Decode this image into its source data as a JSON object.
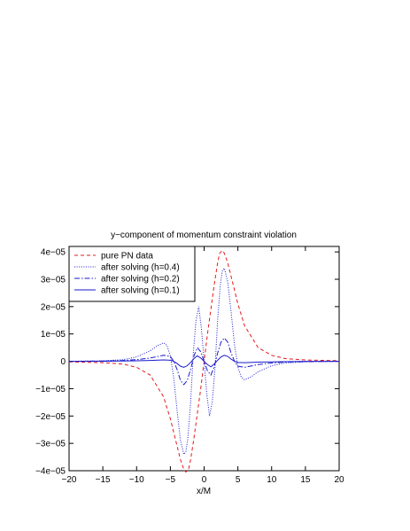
{
  "chart_data": {
    "type": "line",
    "title": "y−component of momentum constraint violation",
    "xlabel": "x/M",
    "ylabel": "",
    "xlim": [
      -20,
      20
    ],
    "ylim": [
      -4e-05,
      4.2e-05
    ],
    "x_ticks": [
      -20,
      -15,
      -10,
      -5,
      0,
      5,
      10,
      15,
      20
    ],
    "x_tick_labels": [
      "−20",
      "−15",
      "−10",
      "−5",
      "0",
      "5",
      "10",
      "15",
      "20"
    ],
    "y_ticks": [
      -4e-05,
      -3e-05,
      -2e-05,
      -1e-05,
      0,
      1e-05,
      2e-05,
      3e-05,
      4e-05
    ],
    "y_tick_labels": [
      "−4e−05",
      "−3e−05",
      "−2e−05",
      "−1e−05",
      "0",
      "1e−05",
      "2e−05",
      "3e−05",
      "4e−05"
    ],
    "grid": false,
    "legend_position": "top-left",
    "series": [
      {
        "name": "pure PN data",
        "color": "#e31a1c",
        "dash": "dashed",
        "x": [
          -20,
          -15,
          -12,
          -10,
          -8,
          -6,
          -5,
          -4,
          -3.5,
          -3,
          -2.7,
          -2.3,
          -2,
          -1.5,
          -1,
          -0.5,
          0,
          0.5,
          1,
          1.5,
          2,
          2.3,
          2.7,
          3,
          3.5,
          4,
          5,
          6,
          8,
          10,
          12,
          15,
          20
        ],
        "y": [
          -2e-07,
          -5e-07,
          -1e-06,
          -2.2e-06,
          -5e-06,
          -1.3e-05,
          -2.1e-05,
          -3.1e-05,
          -3.6e-05,
          -3.95e-05,
          -4.05e-05,
          -3.95e-05,
          -3.6e-05,
          -2.8e-05,
          -1.9e-05,
          -1e-05,
          0,
          1e-05,
          1.9e-05,
          2.8e-05,
          3.6e-05,
          3.95e-05,
          4.05e-05,
          3.95e-05,
          3.6e-05,
          3.1e-05,
          2.1e-05,
          1.3e-05,
          5e-06,
          2.2e-06,
          1e-06,
          5e-07,
          2e-07
        ]
      },
      {
        "name": "after solving (h=0.4)",
        "color": "#1a1acc",
        "dash": "dotted",
        "x": [
          -20,
          -15,
          -12,
          -10,
          -8,
          -7,
          -6,
          -5.5,
          -5,
          -4.5,
          -4,
          -3.5,
          -3,
          -2.7,
          -2.4,
          -2,
          -1.6,
          -1.2,
          -0.8,
          -0.4,
          0,
          0.4,
          0.8,
          1.2,
          1.6,
          2,
          2.4,
          2.7,
          3,
          3.5,
          4,
          4.5,
          5,
          5.5,
          6,
          7,
          8,
          10,
          12,
          15,
          20
        ],
        "y": [
          0,
          2e-07,
          6e-07,
          1.6e-06,
          3.8e-06,
          5.6e-06,
          6.8e-06,
          5.8e-06,
          2e-06,
          -6e-06,
          -1.8e-05,
          -2.9e-05,
          -3.4e-05,
          -3.3e-05,
          -2.8e-05,
          -1.5e-05,
          3e-06,
          1.5e-05,
          2e-05,
          1.2e-05,
          0,
          -1.2e-05,
          -2e-05,
          -1.5e-05,
          -3e-06,
          1.5e-05,
          2.8e-05,
          3.3e-05,
          3.4e-05,
          2.9e-05,
          1.8e-05,
          6e-06,
          -2e-06,
          -5.8e-06,
          -6.8e-06,
          -5.6e-06,
          -3.8e-06,
          -1.6e-06,
          -6e-07,
          -2e-07,
          0
        ]
      },
      {
        "name": "after solving (h=0.2)",
        "color": "#1a1acc",
        "dash": "dashdot",
        "x": [
          -20,
          -15,
          -12,
          -10,
          -8,
          -6,
          -5,
          -4.5,
          -4,
          -3.5,
          -3,
          -2.5,
          -2,
          -1.5,
          -1,
          -0.5,
          0,
          0.5,
          1,
          1.5,
          2,
          2.5,
          3,
          3.5,
          4,
          4.5,
          5,
          6,
          8,
          10,
          12,
          15,
          20
        ],
        "y": [
          0,
          1e-07,
          3e-07,
          6e-07,
          1.2e-06,
          2.2e-06,
          1.8e-06,
          0,
          -3e-06,
          -7e-06,
          -8.5e-06,
          -7e-06,
          -3e-06,
          2e-06,
          5e-06,
          3.5e-06,
          0,
          -3.5e-06,
          -5e-06,
          -2e-06,
          3e-06,
          7e-06,
          8.5e-06,
          7e-06,
          3e-06,
          0,
          -1.8e-06,
          -2.2e-06,
          -1.2e-06,
          -6e-07,
          -3e-07,
          -1e-07,
          0
        ]
      },
      {
        "name": "after solving (h=0.1)",
        "color": "#1a1acc",
        "dash": "solid",
        "x": [
          -20,
          -15,
          -10,
          -8,
          -6,
          -5,
          -4.5,
          -4,
          -3.5,
          -3,
          -2.5,
          -2,
          -1.5,
          -1,
          -0.5,
          0,
          0.5,
          1,
          1.5,
          2,
          2.5,
          3,
          3.5,
          4,
          4.5,
          5,
          6,
          8,
          10,
          15,
          20
        ],
        "y": [
          0,
          0,
          2e-07,
          3e-07,
          5e-07,
          4e-07,
          0,
          -8e-07,
          -1.8e-06,
          -2.2e-06,
          -1.6e-06,
          -4e-07,
          1e-06,
          2e-06,
          1.2e-06,
          0,
          -1.2e-06,
          -2e-06,
          -1e-06,
          4e-07,
          1.6e-06,
          2.2e-06,
          1.8e-06,
          8e-07,
          0,
          -4e-07,
          -5e-07,
          -3e-07,
          -2e-07,
          0,
          0
        ]
      }
    ]
  }
}
